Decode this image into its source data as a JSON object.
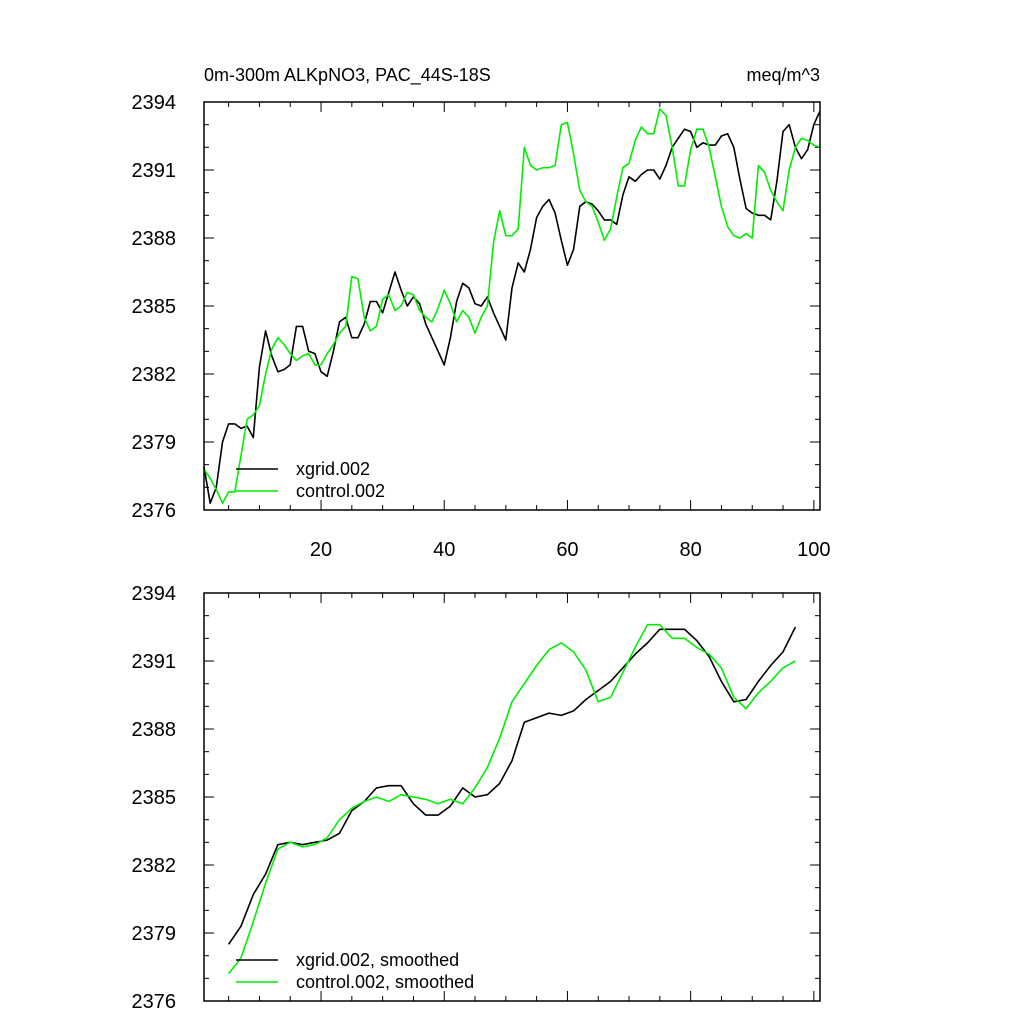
{
  "chart_data": [
    {
      "type": "line",
      "title": "0m-300m ALKpNO3, PAC_44S-18S",
      "units": "meq/m^3",
      "xlim": [
        1,
        101
      ],
      "ylim": [
        2376,
        2394
      ],
      "x_ticks": [
        20,
        40,
        60,
        80,
        100
      ],
      "y_ticks": [
        2376,
        2379,
        2382,
        2385,
        2388,
        2391,
        2394
      ],
      "legend_position": "bottom-left",
      "series": [
        {
          "name": "xgrid.002",
          "color": "#000000",
          "x": [
            1,
            2,
            3,
            4,
            5,
            6,
            7,
            8,
            9,
            10,
            11,
            12,
            13,
            14,
            15,
            16,
            17,
            18,
            19,
            20,
            21,
            22,
            23,
            24,
            25,
            26,
            27,
            28,
            29,
            30,
            31,
            32,
            33,
            34,
            35,
            36,
            37,
            38,
            39,
            40,
            41,
            42,
            43,
            44,
            45,
            46,
            47,
            48,
            49,
            50,
            51,
            52,
            53,
            54,
            55,
            56,
            57,
            58,
            59,
            60,
            61,
            62,
            63,
            64,
            65,
            66,
            67,
            68,
            69,
            70,
            71,
            72,
            73,
            74,
            75,
            76,
            77,
            78,
            79,
            80,
            81,
            82,
            83,
            84,
            85,
            86,
            87,
            88,
            89,
            90,
            91,
            92,
            93,
            94,
            95,
            96,
            97,
            98,
            99,
            100,
            101
          ],
          "values": [
            2377.9,
            2376.3,
            2377.0,
            2379.0,
            2379.8,
            2379.8,
            2379.6,
            2379.7,
            2379.2,
            2382.3,
            2383.9,
            2382.8,
            2382.1,
            2382.2,
            2382.4,
            2384.1,
            2384.1,
            2383.0,
            2382.9,
            2382.1,
            2381.9,
            2383.0,
            2384.3,
            2384.5,
            2383.6,
            2383.6,
            2384.2,
            2385.2,
            2385.2,
            2384.7,
            2385.6,
            2386.5,
            2385.7,
            2385.0,
            2385.4,
            2385.1,
            2384.2,
            2383.6,
            2383.0,
            2382.4,
            2383.6,
            2385.2,
            2386.0,
            2385.8,
            2385.1,
            2385.0,
            2385.4,
            2384.7,
            2384.1,
            2383.5,
            2385.8,
            2386.9,
            2386.5,
            2387.5,
            2388.9,
            2389.4,
            2389.7,
            2389.1,
            2387.9,
            2386.8,
            2387.5,
            2389.4,
            2389.6,
            2389.5,
            2389.2,
            2388.8,
            2388.8,
            2388.6,
            2389.9,
            2390.7,
            2390.5,
            2390.8,
            2391.0,
            2391.0,
            2390.6,
            2391.2,
            2392.0,
            2392.4,
            2392.8,
            2392.7,
            2392.0,
            2392.2,
            2392.1,
            2392.1,
            2392.5,
            2392.6,
            2392.0,
            2390.6,
            2389.3,
            2389.1,
            2389.0,
            2389.0,
            2388.8,
            2390.5,
            2392.7,
            2393.0,
            2392.0,
            2391.5,
            2391.9,
            2393.0,
            2393.6
          ]
        },
        {
          "name": "control.002",
          "color": "#00ee00",
          "x": [
            1,
            2,
            3,
            4,
            5,
            6,
            7,
            8,
            9,
            10,
            11,
            12,
            13,
            14,
            15,
            16,
            17,
            18,
            19,
            20,
            21,
            22,
            23,
            24,
            25,
            26,
            27,
            28,
            29,
            30,
            31,
            32,
            33,
            34,
            35,
            36,
            37,
            38,
            39,
            40,
            41,
            42,
            43,
            44,
            45,
            46,
            47,
            48,
            49,
            50,
            51,
            52,
            53,
            54,
            55,
            56,
            57,
            58,
            59,
            60,
            61,
            62,
            63,
            64,
            65,
            66,
            67,
            68,
            69,
            70,
            71,
            72,
            73,
            74,
            75,
            76,
            77,
            78,
            79,
            80,
            81,
            82,
            83,
            84,
            85,
            86,
            87,
            88,
            89,
            90,
            91,
            92,
            93,
            94,
            95,
            96,
            97,
            98,
            99,
            100,
            101
          ],
          "values": [
            2377.8,
            2377.4,
            2376.9,
            2376.3,
            2376.8,
            2376.8,
            2378.4,
            2380.0,
            2380.2,
            2380.6,
            2382.0,
            2383.1,
            2383.6,
            2383.3,
            2382.9,
            2382.6,
            2382.8,
            2382.9,
            2382.4,
            2382.4,
            2382.9,
            2383.3,
            2383.8,
            2384.1,
            2386.3,
            2386.2,
            2384.5,
            2383.9,
            2384.1,
            2385.3,
            2385.5,
            2384.8,
            2385.0,
            2385.6,
            2385.5,
            2384.8,
            2384.5,
            2384.3,
            2384.9,
            2385.7,
            2385.1,
            2384.3,
            2384.8,
            2384.5,
            2383.8,
            2384.5,
            2385.0,
            2387.8,
            2389.2,
            2388.1,
            2388.1,
            2388.4,
            2392.0,
            2391.2,
            2391.0,
            2391.1,
            2391.1,
            2391.2,
            2393.0,
            2393.1,
            2391.7,
            2390.1,
            2389.6,
            2389.4,
            2388.7,
            2387.9,
            2388.4,
            2389.8,
            2391.1,
            2391.3,
            2392.3,
            2392.9,
            2392.6,
            2392.6,
            2393.7,
            2393.4,
            2392.0,
            2390.3,
            2390.3,
            2391.9,
            2392.8,
            2392.8,
            2392.0,
            2390.7,
            2389.4,
            2388.5,
            2388.1,
            2388.0,
            2388.2,
            2388.0,
            2391.2,
            2390.9,
            2390.1,
            2389.6,
            2389.2,
            2391.0,
            2392.0,
            2392.4,
            2392.3,
            2392.1,
            2392.0
          ]
        }
      ]
    },
    {
      "type": "line",
      "xlim": [
        1,
        101
      ],
      "ylim": [
        2376,
        2394
      ],
      "x_ticks": [
        20,
        40,
        60,
        80,
        100
      ],
      "y_ticks": [
        2376,
        2379,
        2382,
        2385,
        2388,
        2391,
        2394
      ],
      "legend_position": "bottom-left",
      "series": [
        {
          "name": "xgrid.002, smoothed",
          "color": "#000000",
          "x": [
            5,
            7,
            9,
            11,
            13,
            15,
            17,
            19,
            21,
            23,
            25,
            27,
            29,
            31,
            33,
            35,
            37,
            39,
            41,
            43,
            45,
            47,
            49,
            51,
            53,
            55,
            57,
            59,
            61,
            63,
            65,
            67,
            69,
            71,
            73,
            75,
            77,
            79,
            81,
            83,
            85,
            87,
            89,
            91,
            93,
            95,
            97
          ],
          "values": [
            2378.5,
            2379.3,
            2380.7,
            2381.6,
            2382.9,
            2383.0,
            2382.9,
            2383.0,
            2383.1,
            2383.4,
            2384.4,
            2384.8,
            2385.4,
            2385.5,
            2385.5,
            2384.7,
            2384.2,
            2384.2,
            2384.6,
            2385.4,
            2385.0,
            2385.1,
            2385.6,
            2386.6,
            2388.3,
            2388.5,
            2388.7,
            2388.6,
            2388.8,
            2389.3,
            2389.7,
            2390.1,
            2390.7,
            2391.3,
            2391.8,
            2392.4,
            2392.4,
            2392.4,
            2391.9,
            2391.2,
            2390.1,
            2389.2,
            2389.3,
            2390.1,
            2390.8,
            2391.4,
            2392.5
          ]
        },
        {
          "name": "control.002, smoothed",
          "color": "#00ee00",
          "x": [
            5,
            7,
            9,
            11,
            13,
            15,
            17,
            19,
            21,
            23,
            25,
            27,
            29,
            31,
            33,
            35,
            37,
            39,
            41,
            43,
            45,
            47,
            49,
            51,
            53,
            55,
            57,
            59,
            61,
            63,
            65,
            67,
            69,
            71,
            73,
            75,
            77,
            79,
            81,
            83,
            85,
            87,
            89,
            91,
            93,
            95,
            97
          ],
          "values": [
            2377.2,
            2377.9,
            2379.5,
            2381.2,
            2382.7,
            2383.0,
            2382.8,
            2382.9,
            2383.2,
            2384.0,
            2384.5,
            2384.8,
            2385.0,
            2384.8,
            2385.1,
            2385.0,
            2384.9,
            2384.7,
            2384.9,
            2384.7,
            2385.4,
            2386.3,
            2387.6,
            2389.2,
            2390.0,
            2390.8,
            2391.5,
            2391.8,
            2391.4,
            2390.6,
            2389.2,
            2389.4,
            2390.5,
            2391.6,
            2392.6,
            2392.6,
            2392.0,
            2392.0,
            2391.6,
            2391.3,
            2390.7,
            2389.4,
            2388.9,
            2389.6,
            2390.1,
            2390.7,
            2391.0
          ]
        }
      ]
    }
  ]
}
